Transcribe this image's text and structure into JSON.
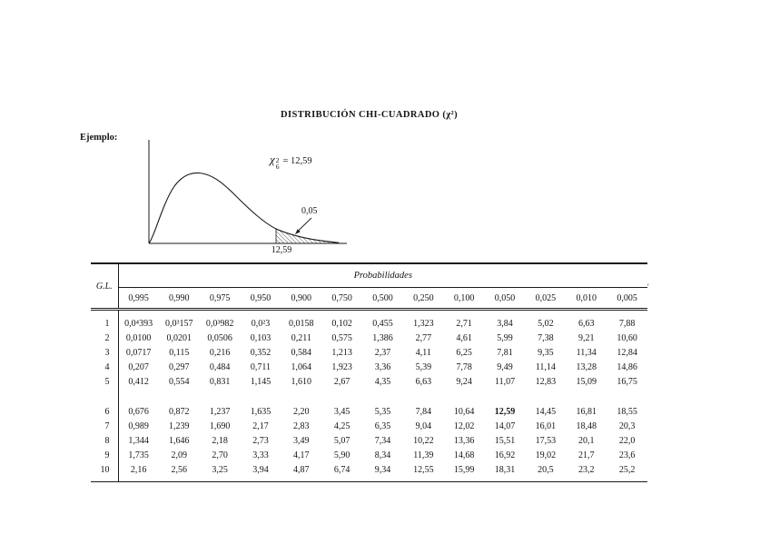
{
  "title": "DISTRIBUCIÓN CHI-CUADRADO (χ²)",
  "example": {
    "label": "Ejemplo:",
    "chi_symbol": "χ",
    "chi_superscript": "2",
    "chi_subscript": "6",
    "chi_equation_rhs": "= 12,59",
    "tail_area_label": "0,05",
    "critical_value_label": "12,59"
  },
  "artifact_mark": "'",
  "chart_data": {
    "type": "table",
    "title": "DISTRIBUCIÓN CHI-CUADRADO (χ²)",
    "row_header_label": "G.L.",
    "column_group_label": "Probabilidades",
    "columns": [
      "0,995",
      "0,990",
      "0,975",
      "0,950",
      "0,900",
      "0,750",
      "0,500",
      "0,250",
      "0,100",
      "0,050",
      "0,025",
      "0,010",
      "0,005"
    ],
    "rows": [
      {
        "gl": "1",
        "values": [
          "0,0⁴393",
          "0,0³157",
          "0,0³982",
          "0,0²3",
          "0,0158",
          "0,102",
          "0,455",
          "1,323",
          "2,71",
          "3,84",
          "5,02",
          "6,63",
          "7,88"
        ]
      },
      {
        "gl": "2",
        "values": [
          "0,0100",
          "0,0201",
          "0,0506",
          "0,103",
          "0,211",
          "0,575",
          "1,386",
          "2,77",
          "4,61",
          "5,99",
          "7,38",
          "9,21",
          "10,60"
        ]
      },
      {
        "gl": "3",
        "values": [
          "0,0717",
          "0,115",
          "0,216",
          "0,352",
          "0,584",
          "1,213",
          "2,37",
          "4,11",
          "6,25",
          "7,81",
          "9,35",
          "11,34",
          "12,84"
        ]
      },
      {
        "gl": "4",
        "values": [
          "0,207",
          "0,297",
          "0,484",
          "0,711",
          "1,064",
          "1,923",
          "3,36",
          "5,39",
          "7,78",
          "9,49",
          "11,14",
          "13,28",
          "14,86"
        ]
      },
      {
        "gl": "5",
        "values": [
          "0,412",
          "0,554",
          "0,831",
          "1,145",
          "1,610",
          "2,67",
          "4,35",
          "6,63",
          "9,24",
          "11,07",
          "12,83",
          "15,09",
          "16,75"
        ]
      },
      {
        "gl": "6",
        "values": [
          "0,676",
          "0,872",
          "1,237",
          "1,635",
          "2,20",
          "3,45",
          "5,35",
          "7,84",
          "10,64",
          "12,59",
          "14,45",
          "16,81",
          "18,55"
        ]
      },
      {
        "gl": "7",
        "values": [
          "0,989",
          "1,239",
          "1,690",
          "2,17",
          "2,83",
          "4,25",
          "6,35",
          "9,04",
          "12,02",
          "14,07",
          "16,01",
          "18,48",
          "20,3"
        ]
      },
      {
        "gl": "8",
        "values": [
          "1,344",
          "1,646",
          "2,18",
          "2,73",
          "3,49",
          "5,07",
          "7,34",
          "10,22",
          "13,36",
          "15,51",
          "17,53",
          "20,1",
          "22,0"
        ]
      },
      {
        "gl": "9",
        "values": [
          "1,735",
          "2,09",
          "2,70",
          "3,33",
          "4,17",
          "5,90",
          "8,34",
          "11,39",
          "14,68",
          "16,92",
          "19,02",
          "21,7",
          "23,6"
        ]
      },
      {
        "gl": "10",
        "values": [
          "2,16",
          "2,56",
          "3,25",
          "3,94",
          "4,87",
          "6,74",
          "9,34",
          "12,55",
          "15,99",
          "18,31",
          "20,5",
          "23,2",
          "25,2"
        ]
      }
    ],
    "group_break_after_row": 5,
    "highlight_cell": {
      "row_gl": "6",
      "column": "0,050",
      "value": "12,59",
      "style": "bold"
    }
  }
}
